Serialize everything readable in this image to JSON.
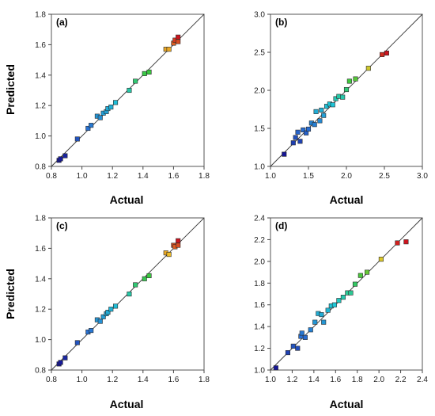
{
  "chart_data": [
    {
      "type": "scatter",
      "panel_label": "(a)",
      "xlabel": "Actual",
      "ylabel": "Predicted",
      "xlim": [
        0.8,
        1.8
      ],
      "ylim": [
        0.8,
        1.8
      ],
      "xticks": [
        "0.8",
        "1.0",
        "1.2",
        "1.4",
        "1.6",
        "1.8"
      ],
      "yticks": [
        "0.8",
        "1.0",
        "1.2",
        "1.4",
        "1.6",
        "1.8"
      ],
      "reference_line": "y = x",
      "points": [
        {
          "x": 0.85,
          "y": 0.84
        },
        {
          "x": 0.86,
          "y": 0.85
        },
        {
          "x": 0.89,
          "y": 0.87
        },
        {
          "x": 0.97,
          "y": 0.98
        },
        {
          "x": 1.04,
          "y": 1.05
        },
        {
          "x": 1.06,
          "y": 1.07
        },
        {
          "x": 1.1,
          "y": 1.13
        },
        {
          "x": 1.12,
          "y": 1.12
        },
        {
          "x": 1.14,
          "y": 1.15
        },
        {
          "x": 1.16,
          "y": 1.16
        },
        {
          "x": 1.17,
          "y": 1.18
        },
        {
          "x": 1.19,
          "y": 1.19
        },
        {
          "x": 1.22,
          "y": 1.22
        },
        {
          "x": 1.31,
          "y": 1.3
        },
        {
          "x": 1.35,
          "y": 1.36
        },
        {
          "x": 1.41,
          "y": 1.41
        },
        {
          "x": 1.44,
          "y": 1.42
        },
        {
          "x": 1.55,
          "y": 1.57
        },
        {
          "x": 1.57,
          "y": 1.57
        },
        {
          "x": 1.6,
          "y": 1.61
        },
        {
          "x": 1.61,
          "y": 1.63
        },
        {
          "x": 1.63,
          "y": 1.62
        },
        {
          "x": 1.63,
          "y": 1.65
        }
      ]
    },
    {
      "type": "scatter",
      "panel_label": "(b)",
      "xlabel": "Actual",
      "ylabel": "",
      "xlim": [
        1.0,
        3.0
      ],
      "ylim": [
        1.0,
        3.0
      ],
      "xticks": [
        "1.0",
        "1.5",
        "2.0",
        "2.5",
        "3.0"
      ],
      "yticks": [
        "1.0",
        "1.5",
        "2.0",
        "2.5",
        "3.0"
      ],
      "reference_line": "y = x",
      "points": [
        {
          "x": 1.18,
          "y": 1.16
        },
        {
          "x": 1.3,
          "y": 1.31
        },
        {
          "x": 1.33,
          "y": 1.38
        },
        {
          "x": 1.36,
          "y": 1.45
        },
        {
          "x": 1.39,
          "y": 1.33
        },
        {
          "x": 1.43,
          "y": 1.48
        },
        {
          "x": 1.47,
          "y": 1.44
        },
        {
          "x": 1.5,
          "y": 1.49
        },
        {
          "x": 1.54,
          "y": 1.57
        },
        {
          "x": 1.58,
          "y": 1.55
        },
        {
          "x": 1.6,
          "y": 1.72
        },
        {
          "x": 1.65,
          "y": 1.6
        },
        {
          "x": 1.67,
          "y": 1.74
        },
        {
          "x": 1.7,
          "y": 1.67
        },
        {
          "x": 1.74,
          "y": 1.79
        },
        {
          "x": 1.78,
          "y": 1.82
        },
        {
          "x": 1.82,
          "y": 1.81
        },
        {
          "x": 1.86,
          "y": 1.89
        },
        {
          "x": 1.9,
          "y": 1.92
        },
        {
          "x": 1.95,
          "y": 1.91
        },
        {
          "x": 2.0,
          "y": 2.01
        },
        {
          "x": 2.04,
          "y": 2.12
        },
        {
          "x": 2.12,
          "y": 2.15
        },
        {
          "x": 2.29,
          "y": 2.29
        },
        {
          "x": 2.47,
          "y": 2.47
        },
        {
          "x": 2.53,
          "y": 2.49
        }
      ]
    },
    {
      "type": "scatter",
      "panel_label": "(c)",
      "xlabel": "Actual",
      "ylabel": "Predicted",
      "xlim": [
        0.8,
        1.8
      ],
      "ylim": [
        0.8,
        1.8
      ],
      "xticks": [
        "0.8",
        "1.0",
        "1.2",
        "1.4",
        "1.6",
        "1.8"
      ],
      "yticks": [
        "0.8",
        "1.0",
        "1.2",
        "1.4",
        "1.6",
        "1.8"
      ],
      "reference_line": "y = x",
      "points": [
        {
          "x": 0.85,
          "y": 0.84
        },
        {
          "x": 0.86,
          "y": 0.85
        },
        {
          "x": 0.89,
          "y": 0.88
        },
        {
          "x": 0.97,
          "y": 0.98
        },
        {
          "x": 1.04,
          "y": 1.05
        },
        {
          "x": 1.06,
          "y": 1.06
        },
        {
          "x": 1.1,
          "y": 1.13
        },
        {
          "x": 1.12,
          "y": 1.12
        },
        {
          "x": 1.14,
          "y": 1.15
        },
        {
          "x": 1.16,
          "y": 1.17
        },
        {
          "x": 1.17,
          "y": 1.18
        },
        {
          "x": 1.19,
          "y": 1.2
        },
        {
          "x": 1.22,
          "y": 1.22
        },
        {
          "x": 1.31,
          "y": 1.3
        },
        {
          "x": 1.35,
          "y": 1.36
        },
        {
          "x": 1.41,
          "y": 1.4
        },
        {
          "x": 1.44,
          "y": 1.42
        },
        {
          "x": 1.55,
          "y": 1.57
        },
        {
          "x": 1.57,
          "y": 1.56
        },
        {
          "x": 1.6,
          "y": 1.62
        },
        {
          "x": 1.61,
          "y": 1.61
        },
        {
          "x": 1.63,
          "y": 1.62
        },
        {
          "x": 1.63,
          "y": 1.65
        }
      ]
    },
    {
      "type": "scatter",
      "panel_label": "(d)",
      "xlabel": "Actual",
      "ylabel": "",
      "xlim": [
        1.0,
        2.4
      ],
      "ylim": [
        1.0,
        2.4
      ],
      "xticks": [
        "1.0",
        "1.2",
        "1.4",
        "1.6",
        "1.8",
        "2.0",
        "2.2",
        "2.4"
      ],
      "yticks": [
        "1.0",
        "1.2",
        "1.4",
        "1.6",
        "1.8",
        "2.0",
        "2.2",
        "2.4"
      ],
      "reference_line": "y = x",
      "points": [
        {
          "x": 1.05,
          "y": 1.02
        },
        {
          "x": 1.16,
          "y": 1.16
        },
        {
          "x": 1.21,
          "y": 1.22
        },
        {
          "x": 1.25,
          "y": 1.2
        },
        {
          "x": 1.28,
          "y": 1.31
        },
        {
          "x": 1.29,
          "y": 1.34
        },
        {
          "x": 1.32,
          "y": 1.3
        },
        {
          "x": 1.37,
          "y": 1.37
        },
        {
          "x": 1.41,
          "y": 1.44
        },
        {
          "x": 1.44,
          "y": 1.52
        },
        {
          "x": 1.47,
          "y": 1.51
        },
        {
          "x": 1.49,
          "y": 1.44
        },
        {
          "x": 1.53,
          "y": 1.55
        },
        {
          "x": 1.56,
          "y": 1.59
        },
        {
          "x": 1.59,
          "y": 1.6
        },
        {
          "x": 1.63,
          "y": 1.64
        },
        {
          "x": 1.67,
          "y": 1.67
        },
        {
          "x": 1.71,
          "y": 1.71
        },
        {
          "x": 1.74,
          "y": 1.71
        },
        {
          "x": 1.78,
          "y": 1.79
        },
        {
          "x": 1.83,
          "y": 1.87
        },
        {
          "x": 1.89,
          "y": 1.9
        },
        {
          "x": 2.02,
          "y": 2.02
        },
        {
          "x": 2.17,
          "y": 2.17
        },
        {
          "x": 2.25,
          "y": 2.18
        }
      ]
    }
  ]
}
